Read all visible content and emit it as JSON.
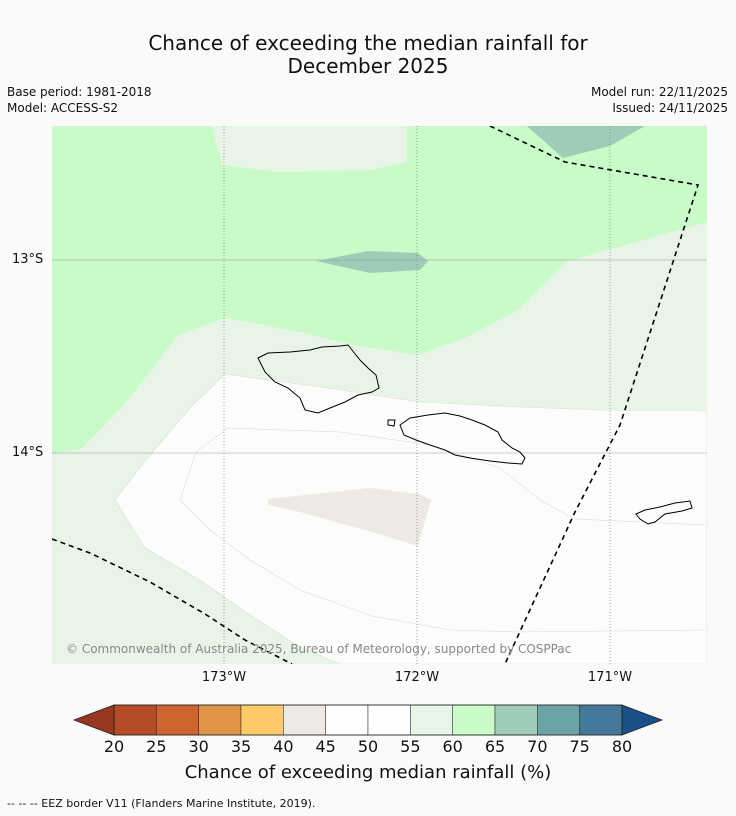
{
  "title": {
    "line1": "Chance of exceeding the median rainfall for",
    "line2": "December 2025"
  },
  "meta": {
    "base_period": "Base period: 1981-2018",
    "model": "Model: ACCESS-S2",
    "model_run": "Model run: 22/11/2025",
    "issued": "Issued: 24/11/2025"
  },
  "map": {
    "lat_labels": [
      "13°S",
      "14°S"
    ],
    "lon_labels": [
      "173°W",
      "172°W",
      "171°W"
    ],
    "copyright": "© Commonwealth of Australia 2025, Bureau of Meteorology, supported by COSPPac",
    "colors": {
      "c40_45": "#ede9e4",
      "c45_50": "#fdfdfb",
      "c50_55": "#fdfdfb",
      "c55_60": "#e8f4e8",
      "c60_65": "#c8fbc8",
      "c65_70": "#9dcdb8",
      "land_outline": "#000000"
    }
  },
  "colorbar": {
    "ticks": [
      "20",
      "25",
      "30",
      "35",
      "40",
      "45",
      "50",
      "55",
      "60",
      "65",
      "70",
      "75",
      "80"
    ],
    "colors": [
      "#9a3720",
      "#b54b27",
      "#d06531",
      "#e29446",
      "#fccb67",
      "#ede9e4",
      "#fefefe",
      "#fefefe",
      "#e8f4e8",
      "#c8fbc8",
      "#9dcdb8",
      "#6ba4a7",
      "#44799a",
      "#1a4f87"
    ],
    "label": "Chance of exceeding median rainfall (%)"
  },
  "footer": {
    "legend": "--  --  -- EEZ border V11 (Flanders Marine Institute, 2019)."
  }
}
